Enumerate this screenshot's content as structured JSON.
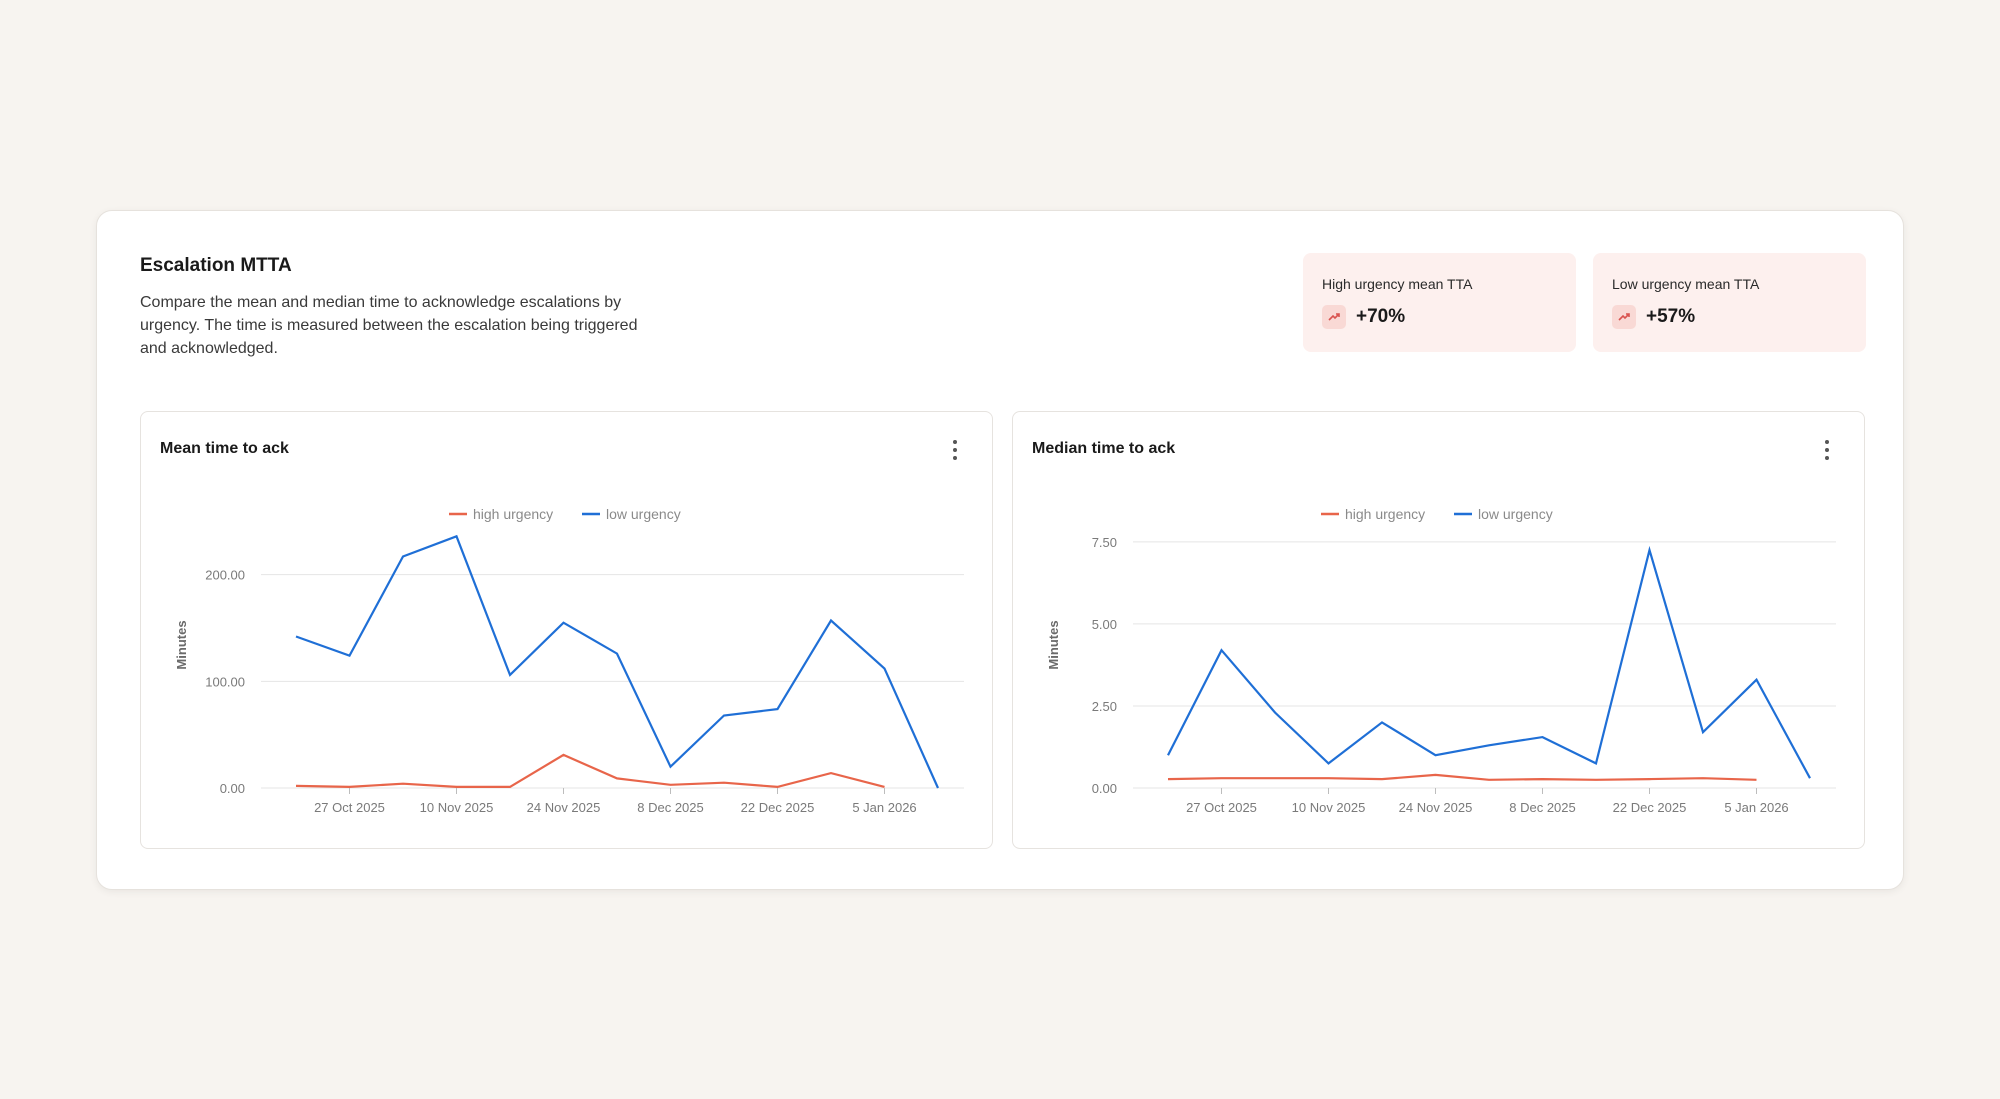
{
  "section": {
    "title": "Escalation MTTA",
    "description": "Compare the mean and median time to acknowledge escalations by urgency. The time is measured between the escalation being triggered and acknowledged."
  },
  "stats": [
    {
      "label": "High urgency mean TTA",
      "value": "+70%",
      "icon": "trend-up-icon"
    },
    {
      "label": "Low urgency mean TTA",
      "value": "+57%",
      "icon": "trend-up-icon"
    }
  ],
  "colors": {
    "high": "#e8654a",
    "low": "#1f6fd6",
    "stat_bg": "#fdf0ee",
    "grid": "#e5e5e5"
  },
  "chart_data": [
    {
      "type": "line",
      "title": "Mean time to ack",
      "ylabel": "Minutes",
      "ylim": [
        0,
        240
      ],
      "yticks": [
        0,
        100,
        200
      ],
      "ytick_labels": [
        "0.00",
        "100.00",
        "200.00"
      ],
      "x": [
        "2025-10-20",
        "2025-10-27",
        "2025-11-03",
        "2025-11-10",
        "2025-11-17",
        "2025-11-24",
        "2025-12-01",
        "2025-12-08",
        "2025-12-15",
        "2025-12-22",
        "2025-12-29",
        "2026-01-05",
        "2026-01-12"
      ],
      "xtick_labels": [
        "27 Oct 2025",
        "10 Nov 2025",
        "24 Nov 2025",
        "8 Dec 2025",
        "22 Dec 2025",
        "5 Jan 2026"
      ],
      "xtick_dates": [
        "2025-10-27",
        "2025-11-10",
        "2025-11-24",
        "2025-12-08",
        "2025-12-22",
        "2026-01-05"
      ],
      "legend_position": "top-center",
      "grid": true,
      "series": [
        {
          "name": "high urgency",
          "color": "#e8654a",
          "values": [
            2,
            1,
            4,
            1,
            1,
            31,
            9,
            3,
            5,
            1,
            14,
            1,
            null
          ]
        },
        {
          "name": "low urgency",
          "color": "#1f6fd6",
          "values": [
            142,
            124,
            217,
            236,
            106,
            155,
            126,
            20,
            68,
            74,
            157,
            112,
            0
          ]
        }
      ]
    },
    {
      "type": "line",
      "title": "Median time to ack",
      "ylabel": "Minutes",
      "ylim": [
        0,
        7.8
      ],
      "yticks": [
        0,
        2.5,
        5,
        7.5
      ],
      "ytick_labels": [
        "0.00",
        "2.50",
        "5.00",
        "7.50"
      ],
      "x": [
        "2025-10-20",
        "2025-10-27",
        "2025-11-03",
        "2025-11-10",
        "2025-11-17",
        "2025-11-24",
        "2025-12-01",
        "2025-12-08",
        "2025-12-15",
        "2025-12-22",
        "2025-12-29",
        "2026-01-05",
        "2026-01-12"
      ],
      "xtick_labels": [
        "27 Oct 2025",
        "10 Nov 2025",
        "24 Nov 2025",
        "8 Dec 2025",
        "22 Dec 2025",
        "5 Jan 2026"
      ],
      "xtick_dates": [
        "2025-10-27",
        "2025-11-10",
        "2025-11-24",
        "2025-12-08",
        "2025-12-22",
        "2026-01-05"
      ],
      "legend_position": "top-center",
      "grid": true,
      "series": [
        {
          "name": "high urgency",
          "color": "#e8654a",
          "values": [
            0.27,
            0.3,
            0.3,
            0.3,
            0.27,
            0.4,
            0.25,
            0.27,
            0.25,
            0.27,
            0.3,
            0.25,
            null
          ]
        },
        {
          "name": "low urgency",
          "color": "#1f6fd6",
          "values": [
            1.0,
            4.2,
            2.3,
            0.75,
            2.0,
            1.0,
            1.3,
            1.55,
            0.75,
            7.25,
            1.7,
            3.3,
            0.3
          ]
        }
      ]
    }
  ]
}
